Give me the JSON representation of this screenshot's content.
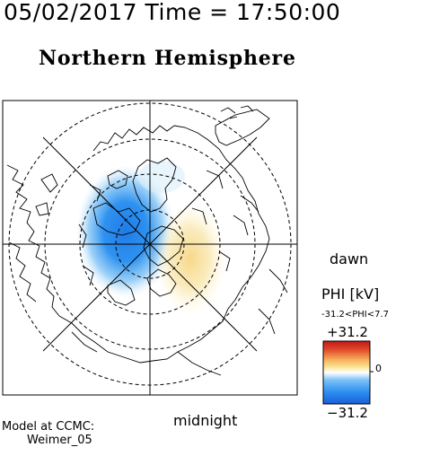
{
  "header": {
    "datetime": "05/02/2017 Time = 17:50:00"
  },
  "map": {
    "title": "Northern Hemisphere",
    "dawn_label": "dawn",
    "midnight_label": "midnight"
  },
  "colorbar": {
    "title": "PHI [kV]",
    "range_text": "-31.2<PHI<7.7",
    "max_label": "+31.2",
    "min_label": "−31.2",
    "zero_label": "0",
    "min_value": -31.2,
    "max_value": 31.2,
    "colors": [
      "#1c5ed6",
      "#2a8cf0",
      "#7cc2f6",
      "#ffffff",
      "#fbe79a",
      "#f6b25c",
      "#e04b2b",
      "#c01818"
    ]
  },
  "model": {
    "prefix": "Model at CCMC:",
    "name": "Weimer_05"
  },
  "potential": {
    "min_kv": -31.2,
    "max_kv": 7.7
  }
}
